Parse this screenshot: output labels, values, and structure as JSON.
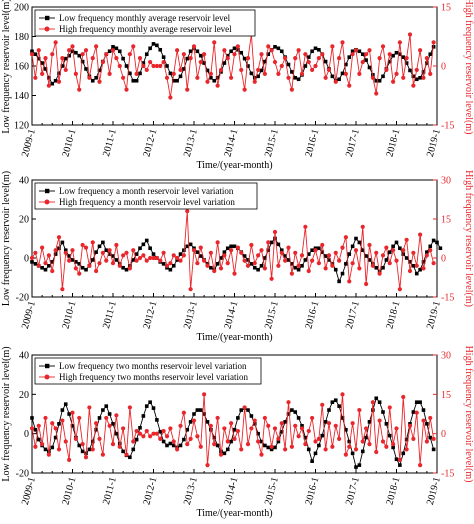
{
  "colors": {
    "low": "#000000",
    "high": "#e8262b"
  },
  "x_ticks": [
    "2009-1",
    "2010-1",
    "2011-1",
    "2012-1",
    "2013-1",
    "2014-1",
    "2015-1",
    "2016-1",
    "2017-1",
    "2018-1",
    "2019-1"
  ],
  "chart_data": [
    {
      "type": "line",
      "xlabel": "Time/(year-month)",
      "ylabel": "Low frequency reservoir level(m)",
      "ylabel_right": "High frequency reservoir level(m)",
      "x_range": [
        0,
        120
      ],
      "ylim": [
        120,
        200
      ],
      "y_ticks": [
        "120",
        "140",
        "160",
        "180",
        "200"
      ],
      "ylim_right": [
        -15,
        15
      ],
      "y_ticks_right": [
        "-15",
        "0",
        "15"
      ],
      "legend": "top-left",
      "series": [
        {
          "name": "Low frequency monthly average reservoir level",
          "axis": "left",
          "marker": "square",
          "values": [
            170,
            168,
            165,
            162,
            158,
            152,
            148,
            150,
            155,
            160,
            165,
            167,
            170,
            169,
            167,
            163,
            158,
            153,
            150,
            152,
            157,
            163,
            168,
            170,
            173,
            172,
            170,
            165,
            160,
            155,
            150,
            150,
            155,
            162,
            168,
            172,
            175,
            174,
            171,
            166,
            160,
            155,
            150,
            150,
            153,
            158,
            165,
            170,
            172,
            170,
            167,
            162,
            157,
            152,
            150,
            152,
            156,
            162,
            167,
            170,
            172,
            171,
            169,
            165,
            160,
            155,
            152,
            153,
            157,
            163,
            168,
            171,
            173,
            172,
            170,
            166,
            161,
            156,
            152,
            151,
            154,
            160,
            166,
            170,
            172,
            171,
            168,
            163,
            158,
            153,
            150,
            151,
            155,
            161,
            166,
            170,
            171,
            170,
            168,
            164,
            159,
            154,
            150,
            150,
            153,
            158,
            163,
            167,
            169,
            168,
            166,
            162,
            157,
            153,
            151,
            152,
            156,
            162,
            168,
            173
          ]
        },
        {
          "name": "High frequency monthly average reservoir level",
          "axis": "right",
          "marker": "circle",
          "values": [
            3,
            -3,
            4,
            -2,
            2,
            -5,
            3,
            6,
            -4,
            2,
            -1,
            4,
            5,
            -2,
            -6,
            3,
            4,
            -3,
            2,
            5,
            -4,
            1,
            3,
            -2,
            4,
            2,
            0,
            -3,
            -6,
            3,
            5,
            -2,
            2,
            0,
            -1,
            1,
            0,
            0,
            0,
            1,
            -3,
            -8,
            -2,
            4,
            -1,
            3,
            -6,
            2,
            5,
            -3,
            1,
            3,
            -4,
            -2,
            6,
            -5,
            -1,
            4,
            2,
            -3,
            3,
            5,
            -1,
            -6,
            2,
            8,
            -4,
            -1,
            3,
            -2,
            5,
            4,
            1,
            -2,
            0,
            2,
            -3,
            -6,
            2,
            4,
            -2,
            3,
            1,
            -1,
            0,
            2,
            3,
            -3,
            -1,
            5,
            -4,
            2,
            6,
            -2,
            -5,
            3,
            4,
            -2,
            1,
            3,
            4,
            -3,
            -7,
            2,
            5,
            -1,
            3,
            -4,
            -2,
            6,
            -3,
            2,
            8,
            -5,
            -1,
            4,
            -3,
            2,
            -2,
            6
          ]
        }
      ]
    },
    {
      "type": "line",
      "xlabel": "Time/(year-month)",
      "ylabel": "Low frequency reservoir level(m)",
      "ylabel_right": "High frequency reservoir level(m)",
      "x_range": [
        0,
        120
      ],
      "ylim": [
        -20,
        40
      ],
      "y_ticks": [
        "-20",
        "0",
        "20",
        "40"
      ],
      "ylim_right": [
        -15,
        30
      ],
      "y_ticks_right": [
        "-15",
        "0",
        "15",
        "30"
      ],
      "legend": "top-left",
      "series": [
        {
          "name": "Low frequency a month reservoir level variation",
          "axis": "left",
          "marker": "square",
          "values": [
            -2,
            -3,
            -4,
            -5,
            -6,
            -4,
            -2,
            2,
            5,
            8,
            4,
            1,
            -1,
            -2,
            -3,
            -5,
            -6,
            -4,
            -1,
            3,
            6,
            8,
            4,
            2,
            1,
            -1,
            -3,
            -5,
            -6,
            -4,
            -1,
            2,
            5,
            7,
            9,
            5,
            2,
            0,
            -2,
            -3,
            -5,
            -6,
            -4,
            -1,
            2,
            4,
            6,
            7,
            5,
            3,
            1,
            -1,
            -3,
            -5,
            -6,
            -3,
            0,
            3,
            5,
            6,
            6,
            5,
            3,
            1,
            -1,
            -3,
            -5,
            -6,
            -4,
            0,
            4,
            8,
            10,
            7,
            4,
            1,
            -1,
            -3,
            -5,
            -6,
            -4,
            -1,
            2,
            4,
            5,
            5,
            3,
            1,
            -1,
            -3,
            -6,
            -12,
            -8,
            -3,
            2,
            6,
            10,
            8,
            4,
            1,
            -1,
            -3,
            -5,
            -7,
            -5,
            -1,
            3,
            6,
            8,
            5,
            2,
            0,
            -2,
            -4,
            -8,
            -6,
            -2,
            3,
            6,
            9,
            8,
            5
          ]
        },
        {
          "name": "High frequency a month reservoir level variation",
          "axis": "right",
          "marker": "circle",
          "values": [
            0,
            2,
            -3,
            4,
            -2,
            1,
            -5,
            3,
            8,
            -12,
            2,
            -1,
            3,
            -4,
            -6,
            5,
            4,
            -3,
            6,
            -5,
            -2,
            2,
            -1,
            3,
            -2,
            5,
            -3,
            1,
            2,
            -4,
            3,
            -1,
            0,
            1,
            -1,
            0,
            0,
            0,
            -1,
            2,
            -3,
            -2,
            1,
            0,
            -1,
            1,
            18,
            -12,
            3,
            -2,
            4,
            -1,
            -3,
            2,
            -5,
            6,
            -4,
            1,
            -2,
            3,
            -6,
            4,
            2,
            -1,
            -3,
            5,
            -2,
            1,
            3,
            -4,
            6,
            -8,
            10,
            -3,
            2,
            -1,
            4,
            -6,
            2,
            -3,
            1,
            12,
            -5,
            -1,
            3,
            -2,
            5,
            -4,
            1,
            -3,
            2,
            -1,
            4,
            8,
            -9,
            -2,
            3,
            -4,
            12,
            -10,
            5,
            -3,
            2,
            -6,
            1,
            4,
            -2,
            3,
            -1,
            -12,
            3,
            7,
            -5,
            2,
            -3,
            9,
            -4,
            1,
            3,
            -2
          ]
        }
      ]
    },
    {
      "type": "line",
      "xlabel": "Time/(year-month)",
      "ylabel": "Low frequency reservoir level(m)",
      "ylabel_right": "High frequency reservoir level(m)",
      "x_range": [
        0,
        120
      ],
      "ylim": [
        -20,
        40
      ],
      "y_ticks": [
        "-20",
        "0",
        "20",
        "40"
      ],
      "ylim_right": [
        -15,
        30
      ],
      "y_ticks_right": [
        "-15",
        "0",
        "15",
        "30"
      ],
      "legend": "top-left",
      "series": [
        {
          "name": "Low frequency two months reservoir level variation",
          "axis": "left",
          "marker": "square",
          "values": [
            8,
            2,
            -3,
            -6,
            -8,
            -9,
            -7,
            -2,
            5,
            12,
            15,
            10,
            4,
            -2,
            -6,
            -9,
            -10,
            -8,
            -4,
            2,
            8,
            12,
            14,
            10,
            5,
            0,
            -5,
            -9,
            -11,
            -12,
            -8,
            -3,
            3,
            9,
            14,
            16,
            13,
            7,
            1,
            -4,
            -6,
            -5,
            -6,
            -7,
            -6,
            -3,
            2,
            6,
            10,
            12,
            12,
            10,
            6,
            2,
            -2,
            -6,
            -9,
            -10,
            -8,
            -4,
            2,
            8,
            12,
            13,
            12,
            9,
            5,
            0,
            -4,
            -6,
            -7,
            -8,
            -7,
            -4,
            1,
            6,
            10,
            12,
            11,
            8,
            4,
            -2,
            -8,
            -14,
            -10,
            -6,
            -1,
            6,
            12,
            16,
            17,
            14,
            8,
            2,
            -4,
            -10,
            -17,
            -16,
            -9,
            -2,
            6,
            12,
            18,
            16,
            11,
            5,
            -1,
            -7,
            -13,
            -16,
            -10,
            -3,
            5,
            11,
            16,
            16,
            12,
            5,
            -2,
            -8
          ]
        },
        {
          "name": "High frequency two months reservoir level variation",
          "axis": "right",
          "marker": "circle",
          "values": [
            2,
            -5,
            3,
            -4,
            6,
            -8,
            4,
            2,
            -6,
            5,
            -3,
            -10,
            8,
            -2,
            6,
            -4,
            -9,
            10,
            -6,
            4,
            -2,
            -8,
            6,
            3,
            -4,
            7,
            -5,
            2,
            -8,
            10,
            -3,
            1,
            0,
            -1,
            1,
            -1,
            0,
            0,
            -2,
            1,
            -1,
            2,
            -3,
            -6,
            3,
            8,
            -4,
            -2,
            5,
            -1,
            -5,
            15,
            -12,
            3,
            -4,
            6,
            -8,
            2,
            -3,
            4,
            -2,
            1,
            -6,
            10,
            -4,
            2,
            5,
            -3,
            -8,
            6,
            3,
            -5,
            2,
            -2,
            4,
            -6,
            12,
            -5,
            3,
            -1,
            2,
            -4,
            1,
            6,
            -3,
            -2,
            11,
            -6,
            4,
            -5,
            3,
            -2,
            15,
            -8,
            -5,
            4,
            -6,
            9,
            -3,
            2,
            -4,
            12,
            -7,
            5,
            -3,
            -5,
            10,
            -4,
            2,
            -10,
            14,
            -6,
            3,
            -2,
            8,
            -12,
            5,
            -3,
            6,
            -2
          ]
        }
      ]
    }
  ]
}
